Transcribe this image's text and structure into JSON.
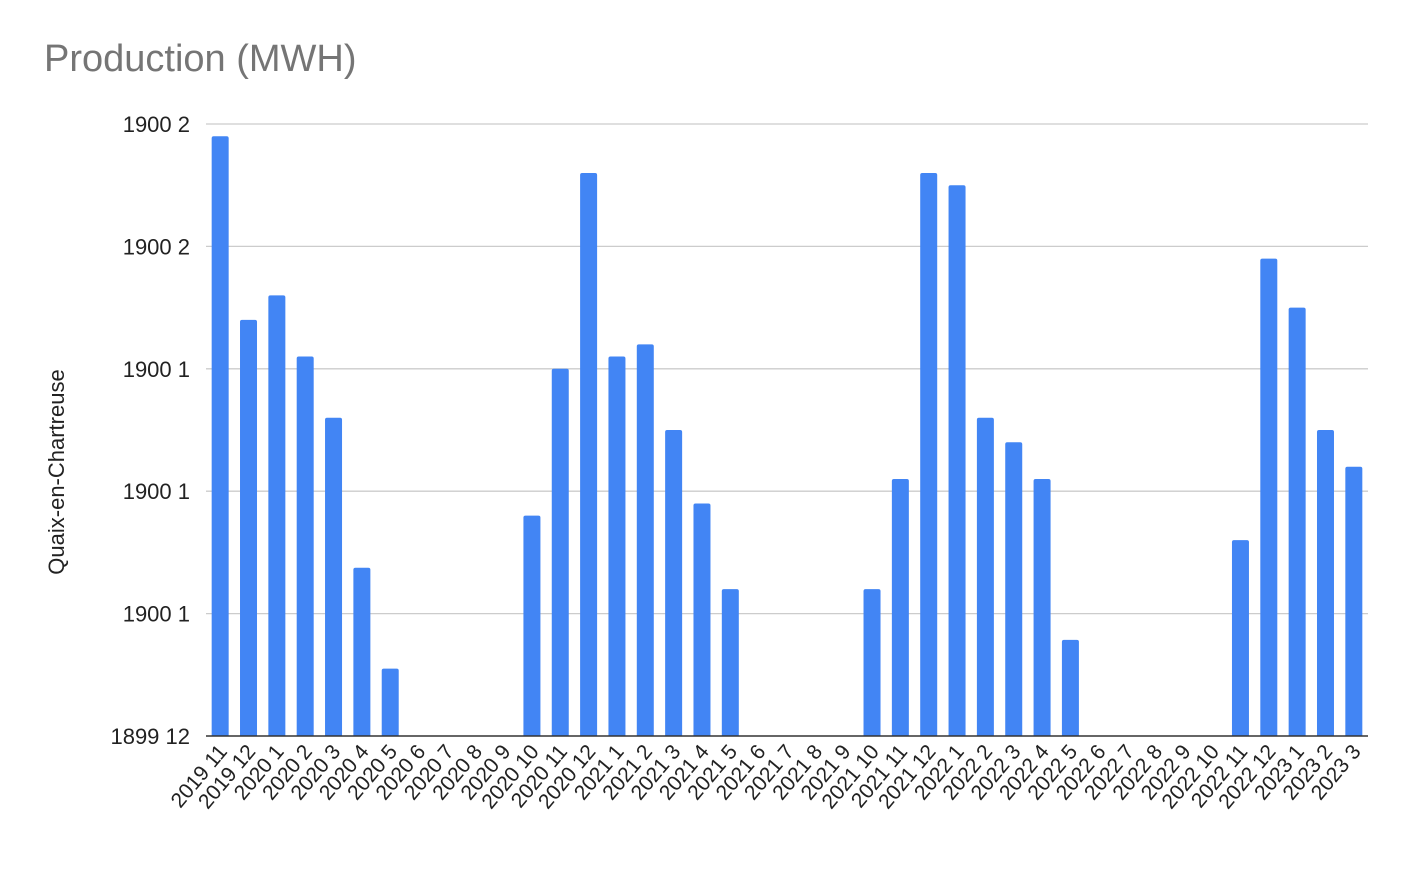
{
  "chart_data": {
    "type": "bar",
    "title": "Production (MWH)",
    "xlabel": "",
    "ylabel": "Quaix-en-Chartreuse",
    "ylim": [
      0,
      100
    ],
    "y_tick_labels": [
      "1899 12",
      "1900 1",
      "1900 1",
      "1900 1",
      "1900 2",
      "1900 2"
    ],
    "y_tick_values": [
      0,
      20,
      40,
      60,
      80,
      100
    ],
    "grid": true,
    "legend": "none",
    "bar_color": "#4285f4",
    "categories": [
      "2019 11",
      "2019 12",
      "2020 1",
      "2020 2",
      "2020 3",
      "2020 4",
      "2020 5",
      "2020 6",
      "2020 7",
      "2020 8",
      "2020 9",
      "2020 10",
      "2020 11",
      "2020 12",
      "2021 1",
      "2021 2",
      "2021 3",
      "2021 4",
      "2021 5",
      "2021 6",
      "2021 7",
      "2021 8",
      "2021 9",
      "2021 10",
      "2021 11",
      "2021 12",
      "2022 1",
      "2022 2",
      "2022 3",
      "2022 4",
      "2022 5",
      "2022 6",
      "2022 7",
      "2022 8",
      "2022 9",
      "2022 10",
      "2022 11",
      "2022 12",
      "2023 1",
      "2023 2",
      "2023 3"
    ],
    "values": [
      98,
      68,
      72,
      62,
      52,
      27.5,
      11,
      0,
      0,
      0,
      0,
      36,
      60,
      92,
      62,
      64,
      50,
      38,
      24,
      0,
      0,
      0,
      0,
      24,
      42,
      92,
      90,
      52,
      48,
      42,
      15.7,
      0,
      0,
      0,
      0,
      0,
      32,
      78,
      70,
      50,
      44
    ]
  }
}
